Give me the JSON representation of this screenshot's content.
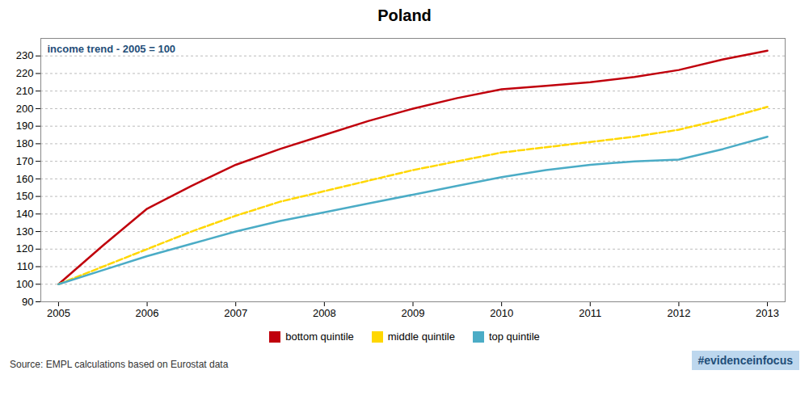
{
  "chart_data": {
    "type": "line",
    "title": "Poland",
    "subtitle": "income trend - 2005 = 100",
    "annotations": [
      "Source: EMPL calculations based on Eurostat data",
      "#evidenceinfocus"
    ],
    "x": [
      2005,
      2005.5,
      2006,
      2006.5,
      2007,
      2007.5,
      2008,
      2008.5,
      2009,
      2009.5,
      2010,
      2010.5,
      2011,
      2011.5,
      2012,
      2012.5,
      2013
    ],
    "series": [
      {
        "name": "bottom quintile",
        "color": "#C0000C",
        "line_style": "solid",
        "values": [
          100,
          122,
          143,
          156,
          168,
          177,
          185,
          193,
          200,
          206,
          211,
          213,
          215,
          218,
          222,
          228,
          233
        ]
      },
      {
        "name": "middle quintile",
        "color": "#FFD700",
        "line_style": "dashed",
        "values": [
          100,
          110,
          120,
          130,
          139,
          147,
          153,
          159,
          165,
          170,
          175,
          178,
          181,
          184,
          188,
          194,
          201
        ]
      },
      {
        "name": "top quintile",
        "color": "#4BACC6",
        "line_style": "solid",
        "values": [
          100,
          108,
          116,
          123,
          130,
          136,
          141,
          146,
          151,
          156,
          161,
          165,
          168,
          170,
          171,
          177,
          184
        ]
      }
    ],
    "xlim": [
      2004.8,
      2013.2
    ],
    "xticks": [
      2005,
      2006,
      2007,
      2008,
      2009,
      2010,
      2011,
      2012,
      2013
    ],
    "ylim": [
      90,
      240
    ],
    "yticks": [
      90,
      100,
      110,
      120,
      130,
      140,
      150,
      160,
      170,
      180,
      190,
      200,
      210,
      220,
      230
    ],
    "grid": true,
    "legend": "bottom"
  }
}
